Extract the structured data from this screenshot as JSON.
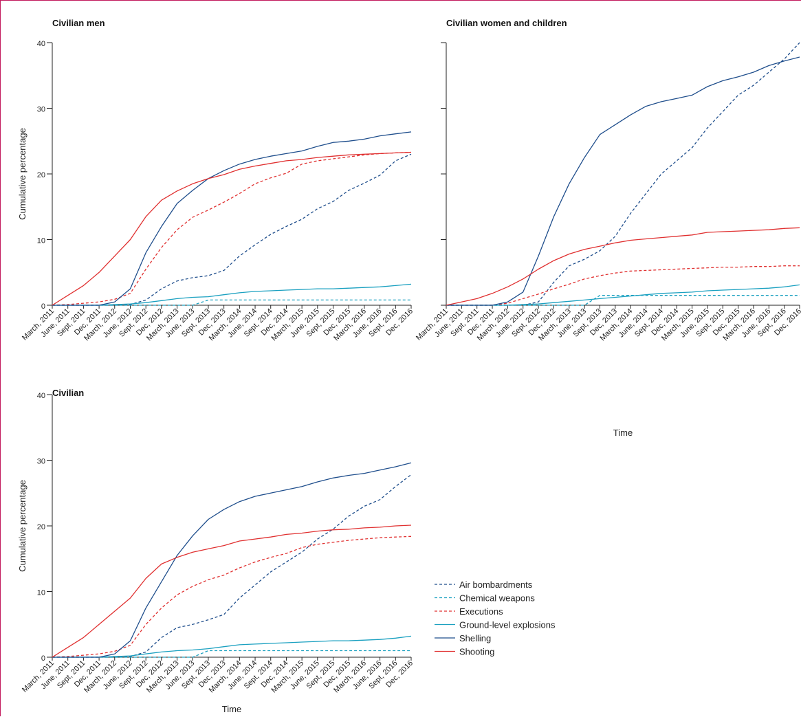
{
  "x_tick_labels": [
    "March, 2011",
    "June, 2011",
    "Sept, 2011",
    "Dec, 2011",
    "March, 2012",
    "June, 2012",
    "Sept, 2012",
    "Dec, 2012",
    "March, 2013",
    "June, 2013",
    "Sept, 2013",
    "Dec, 2013",
    "March, 2014",
    "June, 2014",
    "Sept, 2014",
    "Dec, 2014",
    "March, 2015",
    "June, 2015",
    "Sept, 2015",
    "Dec, 2015",
    "March, 2016",
    "June, 2016",
    "Sept, 2016",
    "Dec, 2016"
  ],
  "legend": [
    {
      "name": "Air bombardments",
      "color": "#1f4e8c",
      "dash": true
    },
    {
      "name": "Chemical weapons",
      "color": "#1aa0c0",
      "dash": true
    },
    {
      "name": "Executions",
      "color": "#e03030",
      "dash": true
    },
    {
      "name": "Ground-level explosions",
      "color": "#1aa0c0",
      "dash": false
    },
    {
      "name": "Shelling",
      "color": "#1f4e8c",
      "dash": false
    },
    {
      "name": "Shooting",
      "color": "#e03030",
      "dash": false
    }
  ],
  "chart_data": [
    {
      "type": "line",
      "title": "Civilian men",
      "xlabel": "",
      "ylabel": "Cumulative percentage",
      "ylim": [
        0,
        40
      ],
      "yticks": [
        0,
        10,
        20,
        30,
        40
      ],
      "x": [
        "March, 2011",
        "June, 2011",
        "Sept, 2011",
        "Dec, 2011",
        "March, 2012",
        "June, 2012",
        "Sept, 2012",
        "Dec, 2012",
        "March, 2013",
        "June, 2013",
        "Sept, 2013",
        "Dec, 2013",
        "March, 2014",
        "June, 2014",
        "Sept, 2014",
        "Dec, 2014",
        "March, 2015",
        "June, 2015",
        "Sept, 2015",
        "Dec, 2015",
        "March, 2016",
        "June, 2016",
        "Sept, 2016",
        "Dec, 2016"
      ],
      "series": [
        {
          "name": "Air bombardments",
          "values": [
            0,
            0,
            0,
            0,
            0,
            0.1,
            0.8,
            2.5,
            3.7,
            4.2,
            4.5,
            5.3,
            7.5,
            9.2,
            10.8,
            12.0,
            13.1,
            14.7,
            15.8,
            17.5,
            18.6,
            19.8,
            22.0,
            23.0
          ]
        },
        {
          "name": "Chemical weapons",
          "values": [
            0,
            0,
            0,
            0,
            0,
            0,
            0,
            0,
            0,
            0,
            0.8,
            0.8,
            0.8,
            0.8,
            0.8,
            0.8,
            0.8,
            0.8,
            0.8,
            0.8,
            0.8,
            0.8,
            0.8,
            0.8
          ]
        },
        {
          "name": "Executions",
          "values": [
            0,
            0.1,
            0.3,
            0.5,
            0.9,
            1.8,
            5.5,
            8.8,
            11.5,
            13.4,
            14.5,
            15.7,
            17.0,
            18.5,
            19.4,
            20.1,
            21.5,
            22.0,
            22.3,
            22.6,
            22.9,
            23.1,
            23.2,
            23.3
          ]
        },
        {
          "name": "Ground-level explosions",
          "values": [
            0,
            0,
            0,
            0,
            0.1,
            0.2,
            0.4,
            0.7,
            1.0,
            1.2,
            1.3,
            1.6,
            1.9,
            2.1,
            2.2,
            2.3,
            2.4,
            2.5,
            2.5,
            2.6,
            2.7,
            2.8,
            3.0,
            3.2
          ]
        },
        {
          "name": "Shelling",
          "values": [
            0,
            0,
            0,
            0,
            0.5,
            2.5,
            8.0,
            12.0,
            15.5,
            17.5,
            19.3,
            20.5,
            21.5,
            22.2,
            22.7,
            23.1,
            23.5,
            24.2,
            24.8,
            25.0,
            25.3,
            25.8,
            26.1,
            26.4
          ]
        },
        {
          "name": "Shooting",
          "values": [
            0,
            1.5,
            3.0,
            5.0,
            7.5,
            10.0,
            13.5,
            16.0,
            17.4,
            18.5,
            19.3,
            19.9,
            20.7,
            21.2,
            21.6,
            22.0,
            22.2,
            22.5,
            22.7,
            22.9,
            23.0,
            23.1,
            23.2,
            23.3
          ]
        }
      ]
    },
    {
      "type": "line",
      "title": "Civilian women and children",
      "xlabel": "Time",
      "ylabel": "",
      "ylim": [
        0,
        40
      ],
      "yticks": [
        0,
        10,
        20,
        30,
        40
      ],
      "x": [
        "March, 2011",
        "June, 2011",
        "Sept, 2011",
        "Dec, 2011",
        "March, 2012",
        "June, 2012",
        "Sept, 2012",
        "Dec, 2012",
        "March, 2013",
        "June, 2013",
        "Sept, 2013",
        "Dec, 2013",
        "March, 2014",
        "June, 2014",
        "Sept, 2014",
        "Dec, 2014",
        "March, 2015",
        "June, 2015",
        "Sept, 2015",
        "Dec, 2015",
        "March, 2016",
        "June, 2016",
        "Sept, 2016",
        "Dec, 2016"
      ],
      "series": [
        {
          "name": "Air bombardments",
          "values": [
            0,
            0,
            0,
            0,
            0,
            0,
            0.5,
            3.5,
            6.0,
            7.0,
            8.3,
            10.5,
            14.0,
            17.0,
            20.0,
            22.0,
            24.0,
            27.0,
            29.5,
            32.0,
            33.5,
            35.5,
            37.5,
            40.0
          ]
        },
        {
          "name": "Chemical weapons",
          "values": [
            0,
            0,
            0,
            0,
            0,
            0,
            0,
            0,
            0,
            0,
            1.5,
            1.5,
            1.5,
            1.5,
            1.5,
            1.5,
            1.5,
            1.5,
            1.5,
            1.5,
            1.5,
            1.5,
            1.5,
            1.5
          ]
        },
        {
          "name": "Executions",
          "values": [
            0,
            0,
            0,
            0,
            0.3,
            1.0,
            1.7,
            2.5,
            3.2,
            4.0,
            4.5,
            4.9,
            5.2,
            5.3,
            5.4,
            5.5,
            5.6,
            5.7,
            5.8,
            5.8,
            5.9,
            5.9,
            6.0,
            6.0
          ]
        },
        {
          "name": "Ground-level explosions",
          "values": [
            0,
            0,
            0,
            0,
            0,
            0.1,
            0.2,
            0.4,
            0.6,
            0.8,
            1.0,
            1.2,
            1.4,
            1.6,
            1.8,
            1.9,
            2.0,
            2.2,
            2.3,
            2.4,
            2.5,
            2.6,
            2.8,
            3.1
          ]
        },
        {
          "name": "Shelling",
          "values": [
            0,
            0,
            0,
            0,
            0.5,
            2.0,
            7.5,
            13.5,
            18.5,
            22.5,
            26.0,
            27.5,
            29.0,
            30.3,
            31.0,
            31.5,
            32.0,
            33.3,
            34.2,
            34.8,
            35.5,
            36.5,
            37.2,
            37.8
          ]
        },
        {
          "name": "Shooting",
          "values": [
            0,
            0.5,
            1.0,
            1.8,
            2.8,
            4.0,
            5.5,
            6.8,
            7.8,
            8.5,
            9.0,
            9.5,
            9.9,
            10.1,
            10.3,
            10.5,
            10.7,
            11.1,
            11.2,
            11.3,
            11.4,
            11.5,
            11.7,
            11.8
          ]
        }
      ]
    },
    {
      "type": "line",
      "title": "Civilian",
      "xlabel": "Time",
      "ylabel": "Cumulative percentage",
      "ylim": [
        0,
        40
      ],
      "yticks": [
        0,
        10,
        20,
        30,
        40
      ],
      "x": [
        "March, 2011",
        "June, 2011",
        "Sept, 2011",
        "Dec, 2011",
        "March, 2012",
        "June, 2012",
        "Sept, 2012",
        "Dec, 2012",
        "March, 2013",
        "June, 2013",
        "Sept, 2013",
        "Dec, 2013",
        "March, 2014",
        "June, 2014",
        "Sept, 2014",
        "Dec, 2014",
        "March, 2015",
        "June, 2015",
        "Sept, 2015",
        "Dec, 2015",
        "March, 2016",
        "June, 2016",
        "Sept, 2016",
        "Dec, 2016"
      ],
      "series": [
        {
          "name": "Air bombardments",
          "values": [
            0,
            0,
            0,
            0,
            0,
            0.1,
            0.8,
            3.0,
            4.5,
            5.0,
            5.7,
            6.5,
            9.0,
            11.0,
            13.0,
            14.5,
            16.0,
            18.0,
            19.5,
            21.5,
            23.0,
            24.0,
            26.0,
            27.8
          ]
        },
        {
          "name": "Chemical weapons",
          "values": [
            0,
            0,
            0,
            0,
            0,
            0,
            0,
            0,
            0,
            0,
            1.0,
            1.0,
            1.0,
            1.0,
            1.0,
            1.0,
            1.0,
            1.0,
            1.0,
            1.0,
            1.0,
            1.0,
            1.0,
            1.0
          ]
        },
        {
          "name": "Executions",
          "values": [
            0,
            0.1,
            0.3,
            0.5,
            0.9,
            1.8,
            5.0,
            7.5,
            9.5,
            10.8,
            11.8,
            12.5,
            13.6,
            14.5,
            15.2,
            15.8,
            16.7,
            17.2,
            17.5,
            17.8,
            18.0,
            18.2,
            18.3,
            18.4
          ]
        },
        {
          "name": "Ground-level explosions",
          "values": [
            0,
            0,
            0,
            0,
            0.1,
            0.2,
            0.5,
            0.8,
            1.0,
            1.1,
            1.3,
            1.6,
            1.9,
            2.0,
            2.1,
            2.2,
            2.3,
            2.4,
            2.5,
            2.5,
            2.6,
            2.7,
            2.9,
            3.2
          ]
        },
        {
          "name": "Shelling",
          "values": [
            0,
            0,
            0,
            0,
            0.5,
            2.5,
            7.5,
            11.5,
            15.5,
            18.5,
            21.0,
            22.5,
            23.7,
            24.5,
            25.0,
            25.5,
            26.0,
            26.7,
            27.3,
            27.7,
            28.0,
            28.5,
            29.0,
            29.6
          ]
        },
        {
          "name": "Shooting",
          "values": [
            0,
            1.5,
            3.0,
            5.0,
            7.0,
            9.0,
            12.0,
            14.2,
            15.2,
            16.0,
            16.5,
            17.0,
            17.7,
            18.0,
            18.3,
            18.7,
            18.9,
            19.2,
            19.4,
            19.5,
            19.7,
            19.8,
            20.0,
            20.1
          ]
        }
      ]
    }
  ]
}
